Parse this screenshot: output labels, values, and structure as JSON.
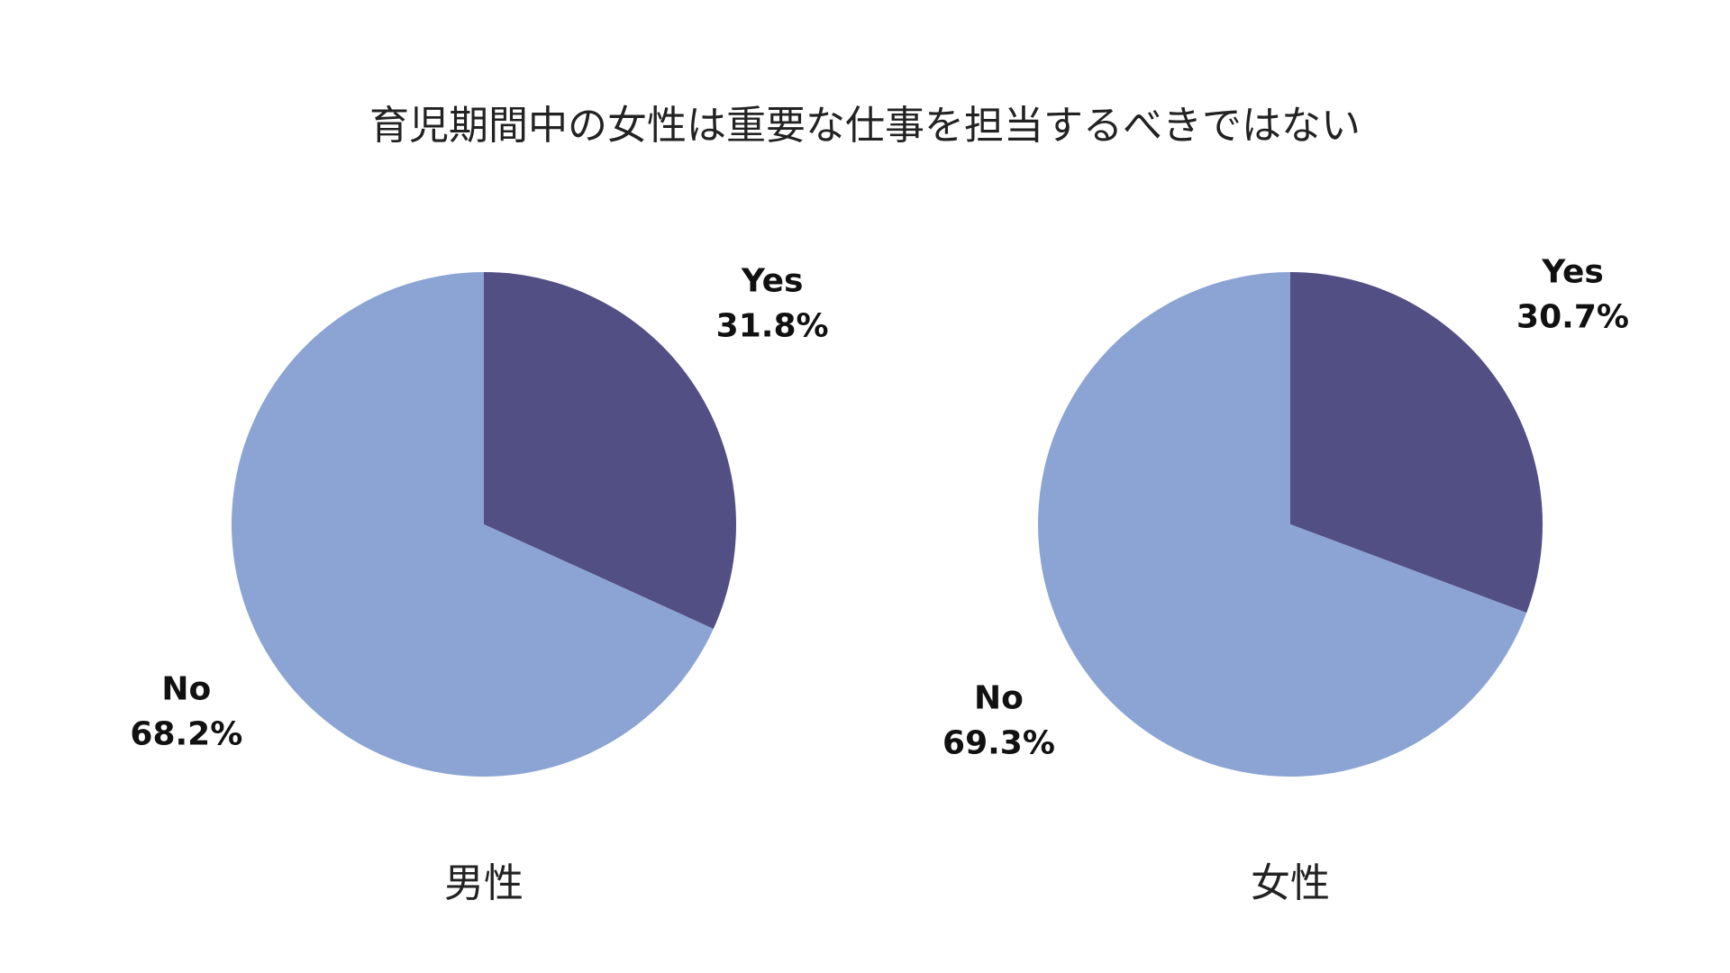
{
  "chart_data": {
    "title": "育児期間中の女性は重要な仕事を担当するべきではない",
    "colors": {
      "yes": "#524f84",
      "no": "#8ca4d4"
    },
    "charts": [
      {
        "type": "pie",
        "caption": "男性",
        "slices": [
          {
            "label": "Yes",
            "value": 31.8,
            "display": "31.8%"
          },
          {
            "label": "No",
            "value": 68.2,
            "display": "68.2%"
          }
        ]
      },
      {
        "type": "pie",
        "caption": "女性",
        "slices": [
          {
            "label": "Yes",
            "value": 30.7,
            "display": "30.7%"
          },
          {
            "label": "No",
            "value": 69.3,
            "display": "69.3%"
          }
        ]
      }
    ]
  }
}
